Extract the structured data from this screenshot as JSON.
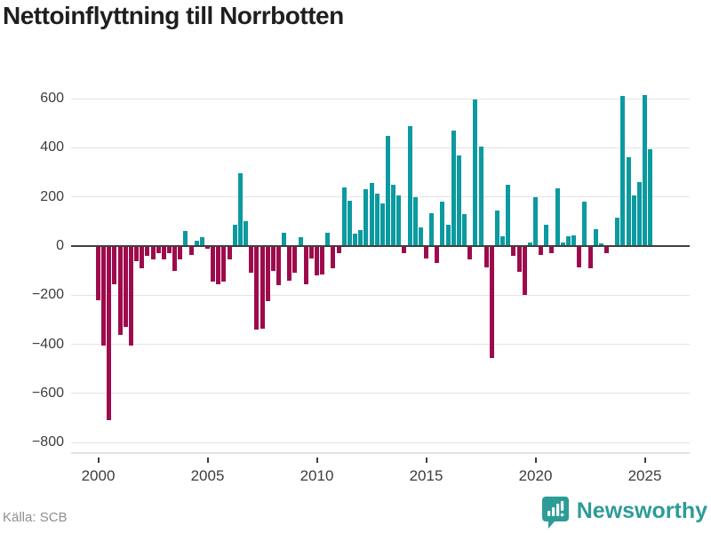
{
  "title": "Nettoinflyttning till Norrbotten",
  "source": "Källa: SCB",
  "brand": {
    "name": "Newsworthy",
    "color": "#2d9c96",
    "icon": "newsworthy-pin-bar-chart-icon"
  },
  "colors": {
    "positive_bar": "#0b9aa0",
    "negative_bar": "#9e0b4d",
    "gridline": "#e3e3e3",
    "zero_line": "#3f3f3f",
    "axis_text": "#3d3d3d",
    "title_text": "#1f1f1f",
    "source_text": "#8f8f8f"
  },
  "chart_data": {
    "type": "bar",
    "title": "Nettoinflyttning till Norrbotten",
    "xlabel": "",
    "ylabel": "",
    "ylim": [
      -800,
      600
    ],
    "grid": true,
    "frequency": "quarterly",
    "start_period": "2000 Q1",
    "end_period": "2025 Q4",
    "ytick_labels": [
      "600",
      "400",
      "200",
      "0",
      "−200",
      "−400",
      "−600",
      "−800"
    ],
    "yticks": [
      600,
      400,
      200,
      0,
      -200,
      -400,
      -600,
      -800
    ],
    "xtick_labels": [
      "2000",
      "2005",
      "2010",
      "2015",
      "2020",
      "2025"
    ],
    "xtick_years": [
      2000,
      2005,
      2010,
      2015,
      2020,
      2025
    ],
    "values": [
      -220,
      -405,
      -710,
      -155,
      -360,
      -330,
      -405,
      -60,
      -90,
      -40,
      -55,
      -30,
      -55,
      -30,
      -100,
      -55,
      60,
      -35,
      20,
      35,
      -10,
      -145,
      -155,
      -145,
      -55,
      85,
      295,
      100,
      -110,
      -340,
      -335,
      -225,
      -100,
      -160,
      55,
      -140,
      -110,
      35,
      -155,
      -50,
      -120,
      -115,
      55,
      -90,
      -30,
      240,
      185,
      50,
      65,
      230,
      255,
      215,
      175,
      450,
      250,
      205,
      -30,
      490,
      200,
      75,
      -50,
      135,
      -70,
      180,
      85,
      470,
      370,
      130,
      -55,
      595,
      405,
      -85,
      -455,
      145,
      40,
      250,
      -40,
      -105,
      -200,
      15,
      200,
      -35,
      85,
      -30,
      235,
      15,
      40,
      45,
      -85,
      180,
      -90,
      70,
      10,
      -30,
      5,
      115,
      610,
      360,
      205,
      260,
      615,
      395,
      0,
      0
    ]
  }
}
